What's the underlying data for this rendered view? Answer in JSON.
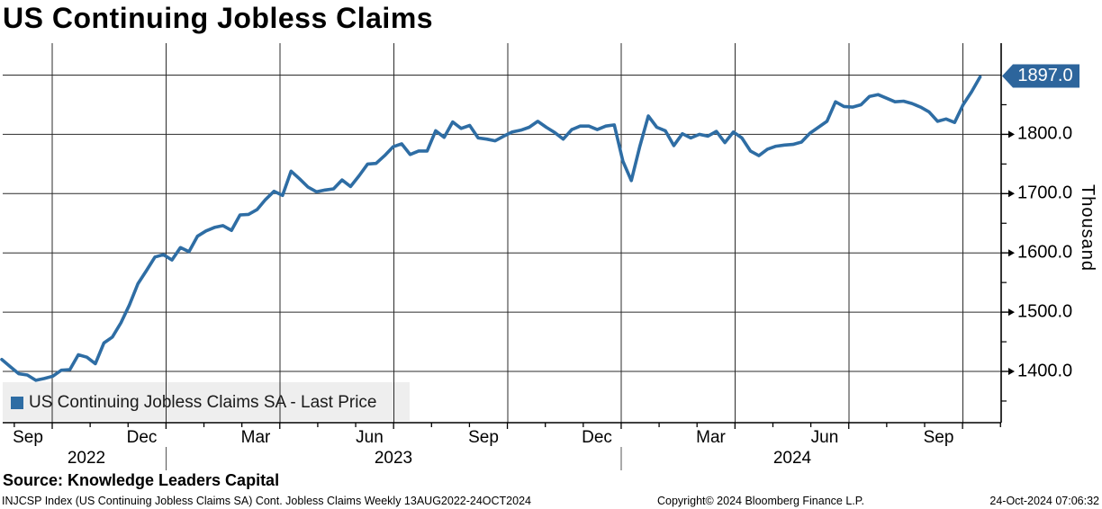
{
  "header": {
    "title": "US Continuing Jobless Claims"
  },
  "legend": {
    "label": "US Continuing Jobless Claims SA - Last Price",
    "marker_color": "#2e6da4"
  },
  "last_price_badge": {
    "label": "1897.0",
    "bg_color": "#2d659c"
  },
  "y_axis": {
    "title": "Thousand",
    "major_ticks": [
      {
        "label": "1800.0",
        "value": 1800
      },
      {
        "label": "1700.0",
        "value": 1700
      },
      {
        "label": "1600.0",
        "value": 1600
      },
      {
        "label": "1500.0",
        "value": 1500
      },
      {
        "label": "1400.0",
        "value": 1400
      }
    ],
    "minor_tick_values": [
      1850,
      1750,
      1650,
      1550,
      1450,
      1350
    ],
    "gridline_values": [
      1900,
      1800,
      1700,
      1600,
      1500,
      1400
    ]
  },
  "x_axis": {
    "month_labels": [
      "Sep",
      "Dec",
      "Mar",
      "Jun",
      "Sep",
      "Dec",
      "Mar",
      "Jun",
      "Sep"
    ],
    "year_labels": [
      "2022",
      "2023",
      "2024"
    ]
  },
  "footer": {
    "source": "Source: Knowledge Leaders Capital",
    "ticker_line": "INJCSP Index (US Continuing Jobless Claims SA) Cont. Jobless Claims  Weekly 13AUG2022-24OCT2024",
    "copyright": "Copyright© 2024 Bloomberg Finance L.P.",
    "timestamp": "24-Oct-2024 07:06:32"
  },
  "chart_data": {
    "type": "line",
    "title": "US Continuing Jobless Claims",
    "ylabel": "Thousand",
    "frequency": "Weekly",
    "date_range": "13AUG2022-24OCT2024",
    "ylim": [
      1350,
      1950
    ],
    "y_gridlines": [
      1900,
      1800,
      1700,
      1600,
      1500,
      1400
    ],
    "x_tick_labels": [
      "Sep 2022",
      "Dec 2022",
      "Mar 2023",
      "Jun 2023",
      "Sep 2023",
      "Dec 2023",
      "Mar 2024",
      "Jun 2024",
      "Sep 2024"
    ],
    "legend_position": "lower left",
    "grid": true,
    "last_price": 1897.0,
    "line_color": "#2e6da4",
    "series": [
      {
        "name": "US Continuing Jobless Claims SA - Last Price",
        "unit": "Thousand",
        "values": [
          1420,
          1408,
          1396,
          1394,
          1385,
          1388,
          1392,
          1402,
          1403,
          1428,
          1424,
          1413,
          1448,
          1458,
          1482,
          1512,
          1548,
          1570,
          1593,
          1597,
          1588,
          1609,
          1602,
          1628,
          1637,
          1643,
          1646,
          1638,
          1664,
          1665,
          1673,
          1690,
          1704,
          1697,
          1738,
          1725,
          1711,
          1703,
          1706,
          1708,
          1723,
          1712,
          1730,
          1750,
          1751,
          1764,
          1779,
          1784,
          1766,
          1772,
          1772,
          1806,
          1795,
          1821,
          1810,
          1815,
          1794,
          1792,
          1789,
          1797,
          1804,
          1807,
          1812,
          1822,
          1812,
          1803,
          1792,
          1808,
          1814,
          1814,
          1808,
          1814,
          1816,
          1755,
          1722,
          1780,
          1831,
          1812,
          1806,
          1781,
          1801,
          1794,
          1800,
          1797,
          1805,
          1786,
          1804,
          1794,
          1772,
          1764,
          1775,
          1780,
          1782,
          1783,
          1787,
          1802,
          1812,
          1822,
          1855,
          1847,
          1846,
          1850,
          1864,
          1867,
          1861,
          1855,
          1856,
          1852,
          1846,
          1838,
          1822,
          1826,
          1820,
          1850,
          1872,
          1897
        ]
      }
    ]
  }
}
